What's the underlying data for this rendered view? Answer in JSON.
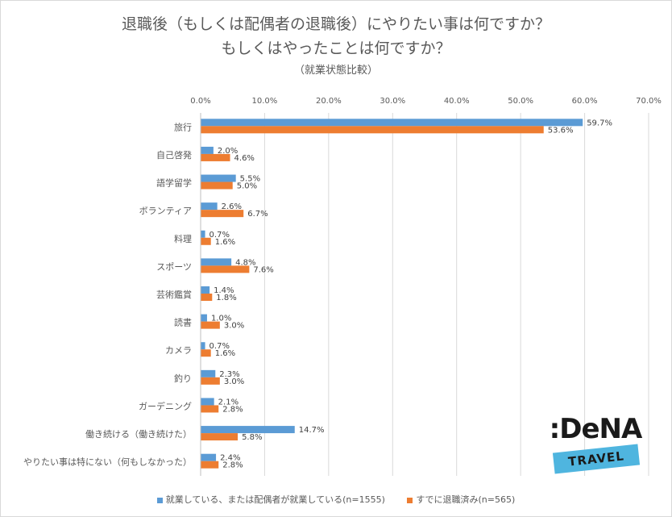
{
  "title_line1": "退職後（もしくは配偶者の退職後）にやりたい事は何ですか？",
  "title_line2": "もしくはやったことは何ですか？",
  "subtitle": "（就業状態比較）",
  "colors": {
    "series1": "#5b9bd5",
    "series2": "#ed7d31",
    "grid": "#d9d9d9"
  },
  "logo": {
    "brand": ":DeNA",
    "sub": "TRAVEL"
  },
  "chart_data": {
    "type": "bar",
    "orientation": "horizontal",
    "title": "退職後（もしくは配偶者の退職後）にやりたい事は何ですか？ もしくはやったことは何ですか？",
    "subtitle": "（就業状態比較）",
    "xlim": [
      0,
      70
    ],
    "ticks": [
      "0.0%",
      "10.0%",
      "20.0%",
      "30.0%",
      "40.0%",
      "50.0%",
      "60.0%",
      "70.0%"
    ],
    "grid": true,
    "legend_position": "bottom",
    "categories": [
      "旅行",
      "自己啓発",
      "語学留学",
      "ボランティア",
      "料理",
      "スポーツ",
      "芸術鑑賞",
      "読書",
      "カメラ",
      "釣り",
      "ガーデニング",
      "働き続ける（働き続けた）",
      "やりたい事は特にない（何もしなかった）"
    ],
    "series": [
      {
        "name": "就業している、または配偶者が就業している(n=1555)",
        "values": [
          59.7,
          2.0,
          5.5,
          2.6,
          0.7,
          4.8,
          1.4,
          1.0,
          0.7,
          2.3,
          2.1,
          14.7,
          2.4
        ],
        "labels": [
          "59.7%",
          "2.0%",
          "5.5%",
          "2.6%",
          "0.7%",
          "4.8%",
          "1.4%",
          "1.0%",
          "0.7%",
          "2.3%",
          "2.1%",
          "14.7%",
          "2.4%"
        ]
      },
      {
        "name": "すでに退職済み(n=565)",
        "values": [
          53.6,
          4.6,
          5.0,
          6.7,
          1.6,
          7.6,
          1.8,
          3.0,
          1.6,
          3.0,
          2.8,
          5.8,
          2.8
        ],
        "labels": [
          "53.6%",
          "4.6%",
          "5.0%",
          "6.7%",
          "1.6%",
          "7.6%",
          "1.8%",
          "3.0%",
          "1.6%",
          "3.0%",
          "2.8%",
          "5.8%",
          "2.8%"
        ]
      }
    ]
  }
}
